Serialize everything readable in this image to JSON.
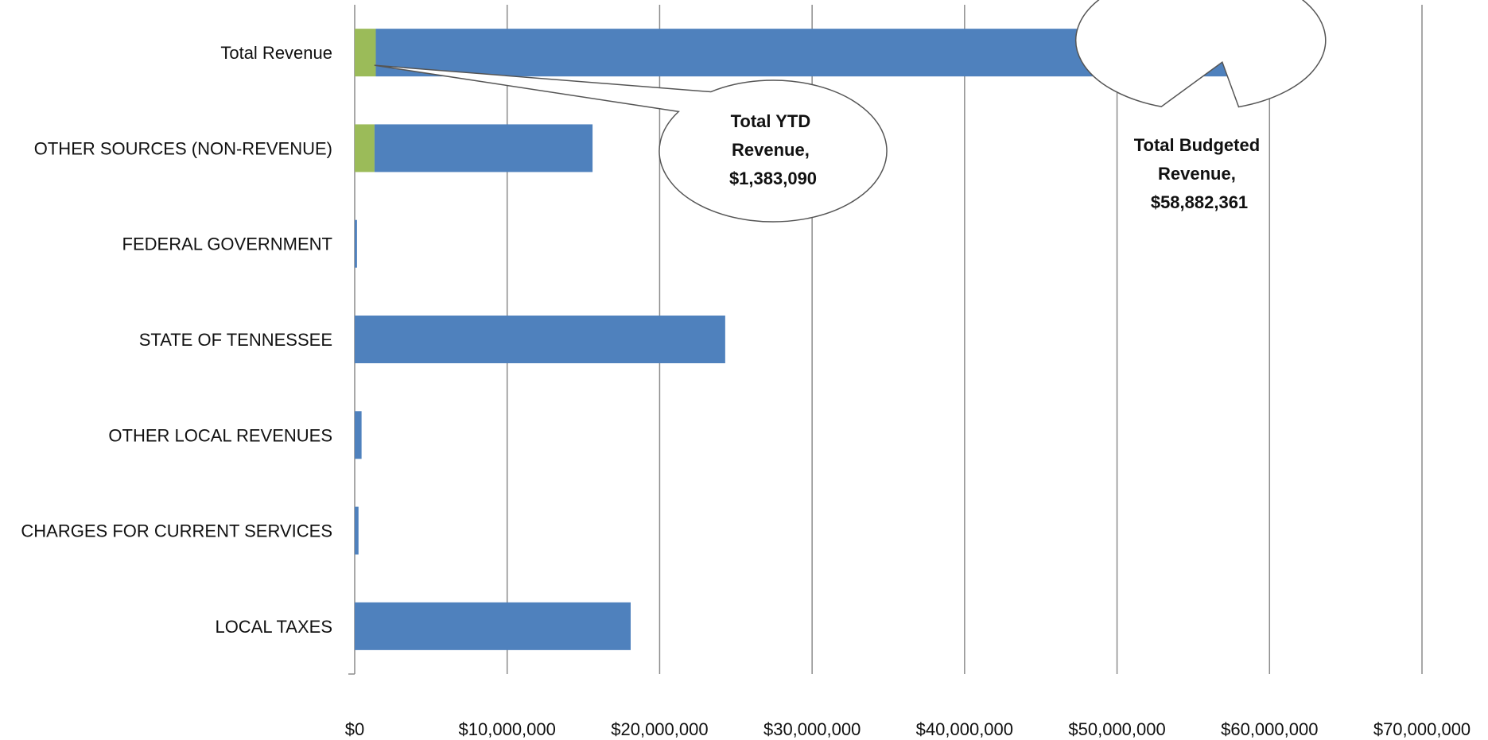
{
  "chart_data": {
    "type": "bar",
    "orientation": "horizontal",
    "stacked": true,
    "categories": [
      "Total Revenue",
      "OTHER SOURCES (NON-REVENUE)",
      "FEDERAL GOVERNMENT",
      "STATE OF TENNESSEE",
      "OTHER LOCAL REVENUES",
      "CHARGES FOR CURRENT SERVICES",
      "LOCAL TAXES"
    ],
    "series": [
      {
        "color": "#9BBB59",
        "values": [
          1383090,
          1300000,
          0,
          0,
          0,
          0,
          0
        ]
      },
      {
        "color": "#4F81BD",
        "values": [
          57499271,
          14300000,
          150000,
          24300000,
          450000,
          250000,
          18100000
        ]
      }
    ],
    "xlim": [
      0,
      70000000
    ],
    "xticks": [
      0,
      10000000,
      20000000,
      30000000,
      40000000,
      50000000,
      60000000,
      70000000
    ],
    "xtick_labels": [
      "$0",
      "$10,000,000",
      "$20,000,000",
      "$30,000,000",
      "$40,000,000",
      "$50,000,000",
      "$60,000,000",
      "$70,000,000"
    ],
    "grid": "vertical",
    "legend": "none",
    "annotations": [
      {
        "name": "ytd",
        "lines": [
          "Total YTD",
          "Revenue,",
          "$1,383,090"
        ],
        "points_to_value": 1383090,
        "points_to_category": "Total Revenue"
      },
      {
        "name": "budget",
        "lines": [
          "Total Budgeted",
          "Revenue,",
          "$58,882,361"
        ],
        "points_to_value": 58882361,
        "points_to_category": "Total Revenue"
      }
    ]
  }
}
